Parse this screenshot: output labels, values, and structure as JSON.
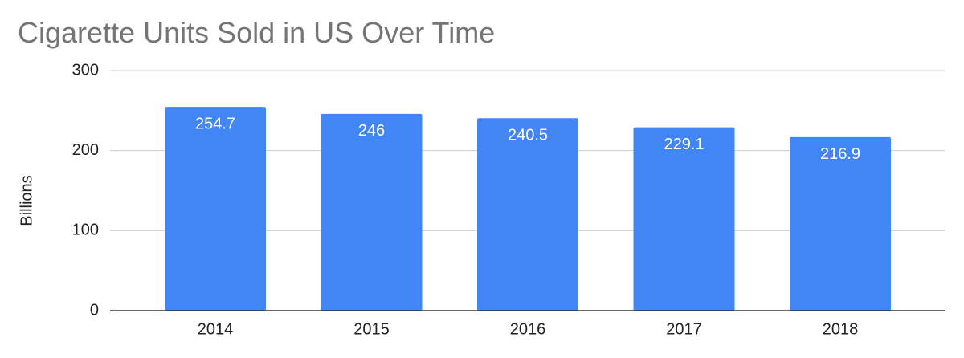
{
  "chart_data": {
    "type": "bar",
    "title": "Cigarette Units Sold in US Over Time",
    "y_label": "Billions",
    "categories": [
      "2014",
      "2015",
      "2016",
      "2017",
      "2018"
    ],
    "values": [
      254.7,
      246,
      240.5,
      229.1,
      216.9
    ],
    "color": "#4285f4",
    "ylim": [
      0,
      300
    ],
    "yticks": [
      0,
      100,
      200,
      300
    ],
    "grid": true
  }
}
